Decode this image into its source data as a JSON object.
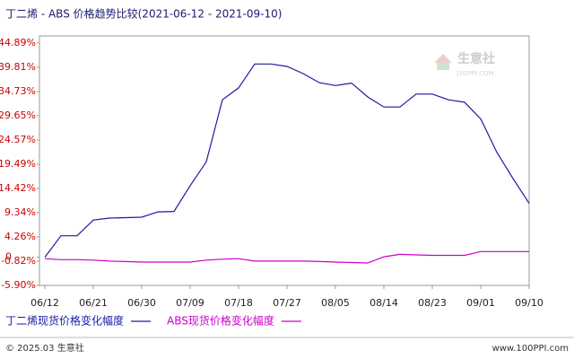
{
  "chart_data": {
    "type": "line",
    "title": "丁二烯 - ABS 价格趋势比较(2021-06-12 - 2021-09-10)",
    "x": [
      "06/12",
      "06/15",
      "06/18",
      "06/21",
      "06/24",
      "06/27",
      "06/30",
      "07/03",
      "07/06",
      "07/09",
      "07/12",
      "07/15",
      "07/18",
      "07/21",
      "07/24",
      "07/27",
      "07/30",
      "08/02",
      "08/05",
      "08/08",
      "08/11",
      "08/14",
      "08/17",
      "08/20",
      "08/23",
      "08/26",
      "08/29",
      "09/01",
      "09/04",
      "09/07",
      "09/10"
    ],
    "series": [
      {
        "name": "丁二烯现货价格变化幅度",
        "color": "#1a1aa8",
        "values": [
          0,
          4.5,
          4.5,
          7.8,
          8.2,
          8.3,
          8.4,
          9.5,
          9.6,
          15,
          20,
          33,
          35.5,
          40.5,
          40.5,
          40,
          38.5,
          36.6,
          36,
          36.5,
          33.6,
          31.5,
          31.5,
          34.2,
          34.2,
          33,
          32.5,
          29,
          22,
          16.5,
          11.3
        ]
      },
      {
        "name": "ABS现货价格变化幅度",
        "color": "#cc00cc",
        "values": [
          -0.3,
          -0.5,
          -0.5,
          -0.6,
          -0.8,
          -0.9,
          -1.0,
          -1.0,
          -1.0,
          -1.0,
          -0.6,
          -0.4,
          -0.3,
          -0.8,
          -0.8,
          -0.8,
          -0.8,
          -0.9,
          -1.0,
          -1.1,
          -1.2,
          0.1,
          0.6,
          0.5,
          0.4,
          0.4,
          0.4,
          1.2,
          1.2,
          1.2,
          1.2
        ]
      }
    ],
    "xticks": [
      "06/12",
      "06/21",
      "06/30",
      "07/09",
      "07/18",
      "07/27",
      "08/05",
      "08/14",
      "08/23",
      "09/01",
      "09/10"
    ],
    "ylim": [
      -5.9,
      44.89
    ],
    "yticks": [
      {
        "value": -5.9,
        "label": "-5.90%"
      },
      {
        "value": -0.82,
        "label": "-0.82%"
      },
      {
        "value": 0,
        "label": "0"
      },
      {
        "value": 4.26,
        "label": "4.26%"
      },
      {
        "value": 9.34,
        "label": "9.34%"
      },
      {
        "value": 14.42,
        "label": "14.42%"
      },
      {
        "value": 19.49,
        "label": "19.49%"
      },
      {
        "value": 24.57,
        "label": "24.57%"
      },
      {
        "value": 29.65,
        "label": "29.65%"
      },
      {
        "value": 34.73,
        "label": "34.73%"
      },
      {
        "value": 39.81,
        "label": "39.81%"
      },
      {
        "value": 44.89,
        "label": "44.89%"
      }
    ],
    "grid": false
  },
  "watermark": {
    "name": "生意社",
    "site": "100PPI.COM"
  },
  "footer": {
    "copyright": "© 2025.03 生意社",
    "site": "www.100PPI.com"
  }
}
